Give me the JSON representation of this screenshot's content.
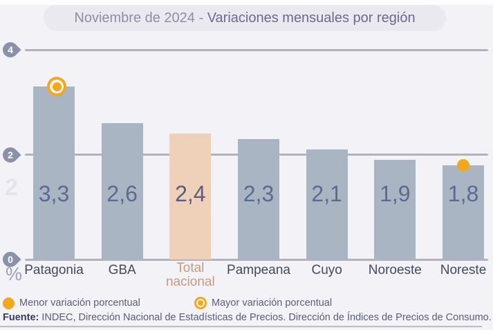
{
  "title": {
    "period": "Noviembre de 2024 - ",
    "subject": "Variaciones mensuales por región"
  },
  "chart_data": {
    "type": "bar",
    "title": "Noviembre de 2024 - Variaciones mensuales por región",
    "categories": [
      "Patagonia",
      "GBA",
      "Total nacional",
      "Pampeana",
      "Cuyo",
      "Noroeste",
      "Noreste"
    ],
    "values": [
      3.3,
      2.6,
      2.4,
      2.3,
      2.1,
      1.9,
      1.8
    ],
    "value_labels": [
      "3,3",
      "2,6",
      "2,4",
      "2,3",
      "2,1",
      "1,9",
      "1,8"
    ],
    "ylabel": "%",
    "xlabel": "",
    "yticks": [
      0,
      2,
      4
    ],
    "ytick_labels": [
      "0",
      "2",
      "4"
    ],
    "ylim": [
      0,
      4
    ],
    "ghost_label": "2",
    "grid": true,
    "highlight_category": "Total nacional",
    "max_marker_category": "Patagonia",
    "min_marker_category": "Noreste",
    "colors": {
      "bar": "#aab5c3",
      "highlight_bar": "#efd0b8",
      "marker_orange": "#f1a81e",
      "gridline": "#b2b2bb"
    }
  },
  "legend": [
    {
      "marker": "solid-dot",
      "label": "Menor variación porcentual"
    },
    {
      "marker": "ringed-dot",
      "label": "Mayor variación porcentual"
    }
  ],
  "footer": {
    "source_label": "Fuente:",
    "source_text": " INDEC, Dirección Nacional de Estadísticas de Precios. Dirección de Índices de Precios de Consumo."
  }
}
